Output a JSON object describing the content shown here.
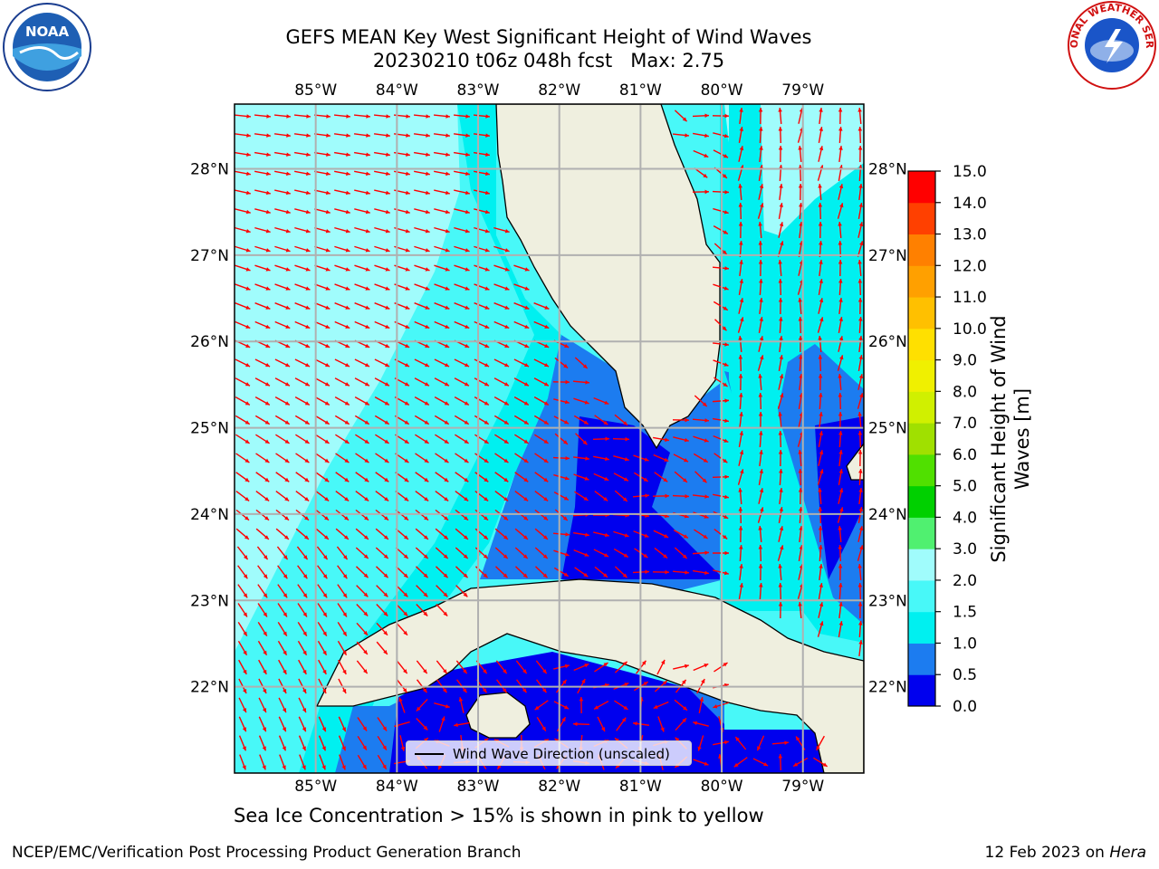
{
  "title": {
    "line1": "GEFS MEAN Key West Significant Height of Wind Waves",
    "line2": "20230210 t06z 048h fcst   Max: 2.75"
  },
  "logos": {
    "left": {
      "name": "noaa-logo",
      "text": "NOAA"
    },
    "right": {
      "name": "national-weather-service-logo",
      "text": "NATIONAL WEATHER SERVICE"
    }
  },
  "map": {
    "lon_labels": [
      "85°W",
      "84°W",
      "83°W",
      "82°W",
      "81°W",
      "80°W",
      "79°W"
    ],
    "lat_labels": [
      "28°N",
      "27°N",
      "26°N",
      "25°N",
      "24°N",
      "23°N",
      "22°N"
    ],
    "lon_range": [
      -86.0,
      -78.25
    ],
    "lat_range": [
      21.0,
      28.75
    ],
    "land_color": "#efefdf",
    "arrow_color": "#ff0000",
    "grid_color": "#b0b0b0"
  },
  "legend": {
    "label": "Wind Wave Direction (unscaled)"
  },
  "colorbar": {
    "title_line1": "Significant Height of Wind",
    "title_line2": "Waves [m]",
    "ticks": [
      "0.0",
      "0.5",
      "1.0",
      "1.5",
      "2.0",
      "3.0",
      "4.0",
      "5.0",
      "6.0",
      "7.0",
      "8.0",
      "9.0",
      "10.0",
      "11.0",
      "12.0",
      "13.0",
      "14.0",
      "15.0"
    ],
    "colors": [
      "#0000ee",
      "#1c7cf0",
      "#00f0f0",
      "#48f8f8",
      "#a0fcfc",
      "#50f070",
      "#00d000",
      "#50e000",
      "#a0e000",
      "#d0f000",
      "#f0f000",
      "#ffe000",
      "#ffc000",
      "#ffa000",
      "#ff8000",
      "#ff4000",
      "#ff0000"
    ]
  },
  "footer": {
    "note": "Sea Ice Concentration > 15% is shown in pink to yellow",
    "credit": "NCEP/EMC/Verification Post Processing Product Generation Branch",
    "date": "12 Feb 2023 on",
    "machine": "Hera"
  }
}
